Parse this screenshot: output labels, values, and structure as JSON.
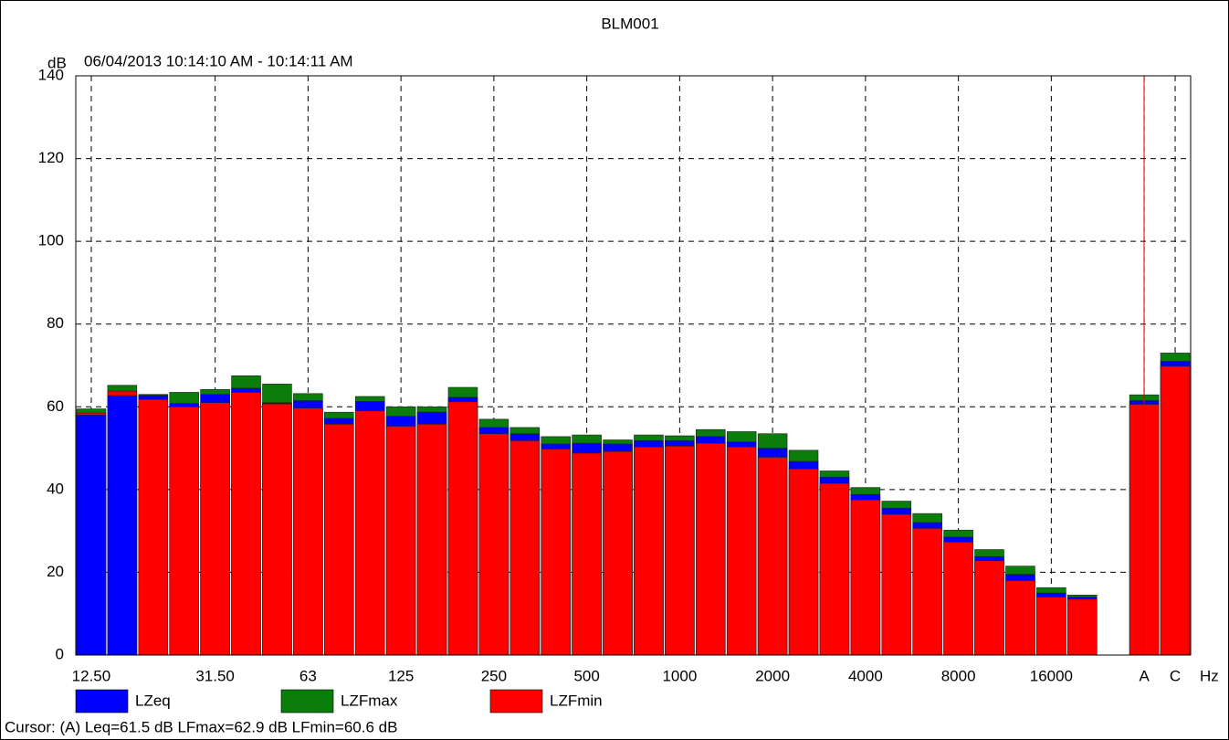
{
  "chart_data": {
    "type": "bar",
    "title": "BLM001",
    "subtitle": "06/04/2013 10:14:10 AM - 10:14:11 AM",
    "ylabel": "dB",
    "xlabel": "Hz",
    "cursor_label": "Cursor: (A)  Leq=61.5 dB  LFmax=62.9 dB  LFmin=60.6 dB",
    "categories": [
      "12.50",
      null,
      null,
      null,
      "31.50",
      null,
      null,
      "63",
      null,
      null,
      "125",
      null,
      null,
      "250",
      null,
      null,
      "500",
      null,
      null,
      "1000",
      null,
      null,
      "2000",
      null,
      null,
      "4000",
      null,
      null,
      "8000",
      null,
      null,
      "16000",
      null,
      null,
      "A",
      "C"
    ],
    "series": [
      {
        "name": "LZeq",
        "color": "#0000ff",
        "values": [
          58.0,
          62.7,
          62.8,
          60.8,
          63.0,
          64.5,
          61.0,
          61.5,
          57.2,
          61.3,
          57.7,
          58.7,
          62.3,
          55.0,
          53.5,
          51.0,
          51.2,
          51.0,
          51.8,
          51.8,
          52.8,
          51.5,
          50.0,
          46.8,
          43.0,
          38.8,
          35.5,
          32.0,
          28.5,
          23.8,
          19.5,
          15.0,
          14.0,
          null,
          61.5,
          71.0
        ]
      },
      {
        "name": "LZFmax",
        "color": "#0a7d0a",
        "values": [
          59.5,
          65.2,
          63.0,
          63.5,
          64.2,
          67.5,
          65.5,
          63.2,
          58.7,
          62.5,
          60.0,
          60.0,
          64.7,
          57.0,
          55.0,
          52.8,
          53.2,
          52.0,
          53.2,
          53.0,
          54.5,
          54.0,
          53.5,
          49.5,
          44.5,
          40.5,
          37.2,
          34.2,
          30.2,
          25.5,
          21.5,
          16.3,
          14.5,
          null,
          62.9,
          73.0
        ]
      },
      {
        "name": "LZFmin",
        "color": "#ff0000",
        "values": [
          58.5,
          63.8,
          61.8,
          60.0,
          61.0,
          63.5,
          60.7,
          59.7,
          55.8,
          59.0,
          55.3,
          55.8,
          61.2,
          53.5,
          51.8,
          49.8,
          48.8,
          49.2,
          50.3,
          50.5,
          51.2,
          50.3,
          47.8,
          45.0,
          41.5,
          37.5,
          34.0,
          30.6,
          27.3,
          22.8,
          18.0,
          14.0,
          13.5,
          null,
          60.6,
          69.8
        ]
      }
    ],
    "ylim": [
      0,
      140
    ],
    "yticks": [
      0,
      20,
      40,
      60,
      80,
      100,
      120,
      140
    ],
    "grid": true,
    "legend": "bottom"
  }
}
